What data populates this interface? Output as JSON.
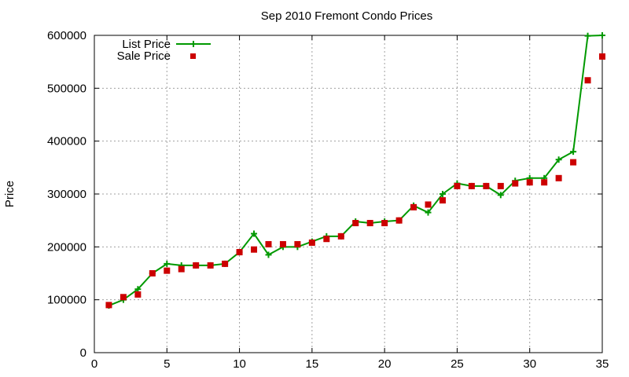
{
  "chart_data": {
    "type": "line",
    "title": "Sep 2010 Fremont Condo Prices",
    "xlabel": "",
    "ylabel": "Price",
    "xlim": [
      0,
      35
    ],
    "ylim": [
      0,
      600000
    ],
    "x_ticks": [
      0,
      5,
      10,
      15,
      20,
      25,
      30,
      35
    ],
    "y_ticks": [
      0,
      100000,
      200000,
      300000,
      400000,
      500000,
      600000
    ],
    "grid": true,
    "legend_position": "top-left",
    "series": [
      {
        "name": "List Price",
        "style": "line-with-plus-markers",
        "color": "#009900",
        "x": [
          1,
          2,
          3,
          4,
          5,
          6,
          7,
          8,
          9,
          10,
          11,
          12,
          13,
          14,
          15,
          16,
          17,
          18,
          19,
          20,
          21,
          22,
          23,
          24,
          25,
          26,
          27,
          28,
          29,
          30,
          31,
          32,
          33,
          34,
          35
        ],
        "y": [
          89000,
          100000,
          120000,
          150000,
          168000,
          165000,
          165000,
          165000,
          168000,
          190000,
          225000,
          185000,
          200000,
          200000,
          210000,
          220000,
          220000,
          248000,
          245000,
          248000,
          250000,
          278000,
          265000,
          300000,
          320000,
          315000,
          315000,
          298000,
          325000,
          330000,
          330000,
          365000,
          380000,
          599000,
          600000
        ]
      },
      {
        "name": "Sale Price",
        "style": "square-markers",
        "color": "#cc0000",
        "x": [
          1,
          2,
          3,
          4,
          5,
          6,
          7,
          8,
          9,
          10,
          11,
          12,
          13,
          14,
          15,
          16,
          17,
          18,
          19,
          20,
          21,
          22,
          23,
          24,
          25,
          26,
          27,
          28,
          29,
          30,
          31,
          32,
          33,
          34,
          35
        ],
        "y": [
          90000,
          105000,
          110000,
          150000,
          155000,
          158000,
          165000,
          165000,
          168000,
          190000,
          195000,
          205000,
          205000,
          205000,
          208000,
          215000,
          220000,
          245000,
          245000,
          245000,
          250000,
          275000,
          280000,
          288000,
          315000,
          315000,
          315000,
          315000,
          320000,
          322000,
          322000,
          330000,
          360000,
          515000,
          560000
        ]
      }
    ]
  }
}
